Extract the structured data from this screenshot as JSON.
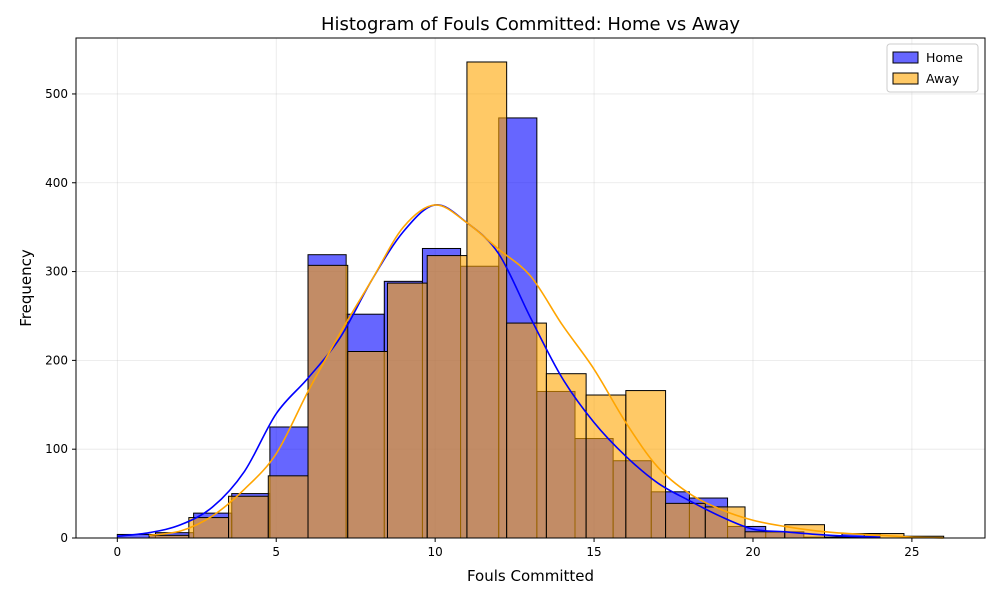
{
  "chart_data": {
    "type": "bar",
    "title": "Histogram of Fouls Committed: Home vs Away",
    "xlabel": "Fouls Committed",
    "ylabel": "Frequency",
    "xlim": [
      -1.3,
      27.3
    ],
    "ylim": [
      0,
      563
    ],
    "x_ticks": [
      0,
      5,
      10,
      15,
      20,
      25
    ],
    "y_ticks": [
      0,
      100,
      200,
      300,
      400,
      500
    ],
    "grid": true,
    "legend_position": "top-right",
    "series": [
      {
        "name": "Home",
        "color": "#0000ff",
        "fill_opacity": 0.6,
        "kde_color": "#0000ff",
        "bin_edges": [
          0,
          1.2,
          2.4,
          3.6,
          4.8,
          6.0,
          7.2,
          8.4,
          9.6,
          10.8,
          12.0,
          13.2,
          14.4,
          15.6,
          16.8,
          18.0,
          19.2,
          20.4,
          21.6,
          22.8,
          24.0
        ],
        "counts": [
          4,
          6,
          28,
          50,
          125,
          319,
          252,
          289,
          326,
          306,
          473,
          165,
          112,
          87,
          52,
          45,
          13,
          7,
          1,
          5
        ],
        "kde": [
          [
            0,
            2
          ],
          [
            1,
            6
          ],
          [
            2,
            15
          ],
          [
            3,
            35
          ],
          [
            4,
            75
          ],
          [
            5,
            140
          ],
          [
            6,
            180
          ],
          [
            7,
            225
          ],
          [
            8,
            290
          ],
          [
            9,
            345
          ],
          [
            10,
            375
          ],
          [
            11,
            355
          ],
          [
            12,
            320
          ],
          [
            13,
            248
          ],
          [
            14,
            180
          ],
          [
            15,
            130
          ],
          [
            16,
            92
          ],
          [
            17,
            62
          ],
          [
            18,
            42
          ],
          [
            19,
            24
          ],
          [
            20,
            10
          ],
          [
            21,
            7
          ],
          [
            22,
            4
          ],
          [
            23,
            2
          ],
          [
            24,
            1
          ]
        ]
      },
      {
        "name": "Away",
        "color": "#ffa500",
        "fill_opacity": 0.6,
        "kde_color": "#ffa500",
        "bin_edges": [
          1.0,
          2.25,
          3.5,
          4.75,
          6.0,
          7.25,
          8.5,
          9.75,
          11.0,
          12.25,
          13.5,
          14.75,
          16.0,
          17.25,
          18.5,
          19.75,
          21.0,
          22.25,
          23.5,
          24.75,
          26.0
        ],
        "counts": [
          3,
          23,
          47,
          70,
          307,
          210,
          287,
          318,
          536,
          242,
          185,
          161,
          166,
          39,
          35,
          7,
          15,
          1,
          5,
          2
        ],
        "kde": [
          [
            1,
            3
          ],
          [
            2,
            8
          ],
          [
            3,
            25
          ],
          [
            4,
            55
          ],
          [
            5,
            95
          ],
          [
            6,
            165
          ],
          [
            7,
            230
          ],
          [
            8,
            290
          ],
          [
            9,
            350
          ],
          [
            10,
            375
          ],
          [
            11,
            355
          ],
          [
            12,
            325
          ],
          [
            13,
            295
          ],
          [
            14,
            240
          ],
          [
            15,
            190
          ],
          [
            16,
            130
          ],
          [
            17,
            80
          ],
          [
            18,
            50
          ],
          [
            19,
            32
          ],
          [
            20,
            20
          ],
          [
            21,
            13
          ],
          [
            22,
            8
          ],
          [
            23,
            5
          ],
          [
            24,
            3
          ],
          [
            25,
            1
          ],
          [
            26,
            0
          ]
        ]
      }
    ]
  }
}
